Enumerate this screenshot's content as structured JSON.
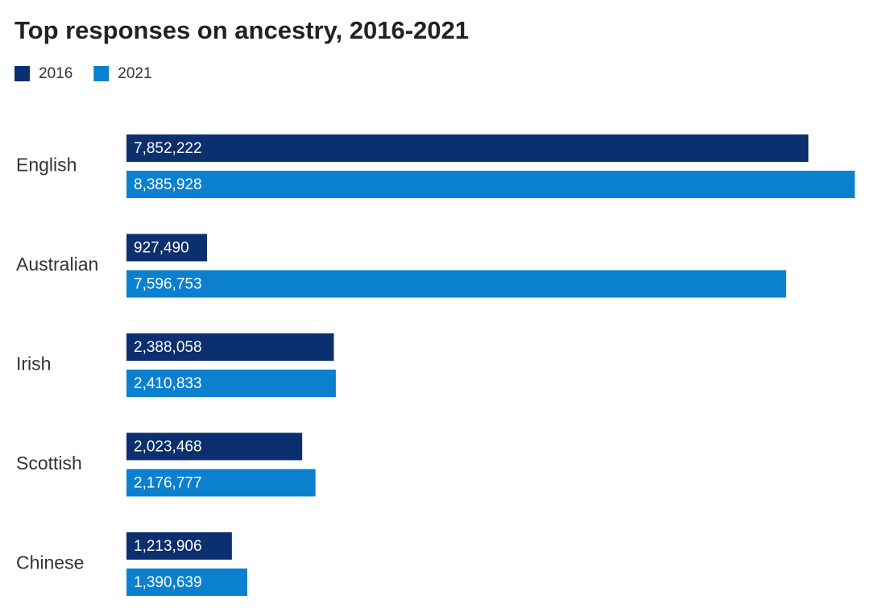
{
  "chart_data": {
    "type": "bar",
    "title": "Top responses on ancestry, 2016-2021",
    "categories": [
      "English",
      "Australian",
      "Irish",
      "Scottish",
      "Chinese"
    ],
    "series": [
      {
        "name": "2016",
        "color": "#0b2f6f",
        "values": [
          7852222,
          927490,
          2388058,
          2023468,
          1213906
        ],
        "value_labels": [
          "7,852,222",
          "927,490",
          "2,388,058",
          "2,023,468",
          "1,213,906"
        ]
      },
      {
        "name": "2021",
        "color": "#0b80cf",
        "values": [
          8385928,
          7596753,
          2410833,
          2176777,
          1390639
        ],
        "value_labels": [
          "8,385,928",
          "7,596,753",
          "2,410,833",
          "2,176,777",
          "1,390,639"
        ]
      }
    ]
  }
}
